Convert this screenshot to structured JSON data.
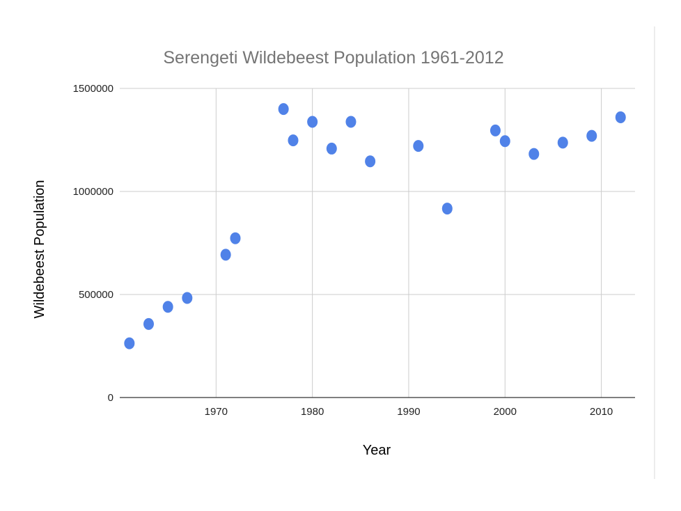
{
  "chart_data": {
    "type": "scatter",
    "title": "Serengeti Wildebeest Population 1961-2012",
    "xlabel": "Year",
    "ylabel": "Wildebeest Population",
    "xlim": [
      1960,
      2013.5
    ],
    "ylim": [
      0,
      1500000
    ],
    "x_ticks": [
      1970,
      1980,
      1990,
      2000,
      2010
    ],
    "y_ticks": [
      0,
      500000,
      1000000,
      1500000
    ],
    "y_tick_labels": [
      "0",
      "500000",
      "1000000",
      "1500000"
    ],
    "grid": true,
    "point_color": "#5082E8",
    "series": [
      {
        "name": "Wildebeest Population",
        "points": [
          {
            "x": 1961,
            "y": 263000
          },
          {
            "x": 1963,
            "y": 357000
          },
          {
            "x": 1965,
            "y": 440000
          },
          {
            "x": 1967,
            "y": 483000
          },
          {
            "x": 1971,
            "y": 693000
          },
          {
            "x": 1972,
            "y": 773000
          },
          {
            "x": 1977,
            "y": 1400000
          },
          {
            "x": 1978,
            "y": 1248000
          },
          {
            "x": 1980,
            "y": 1338000
          },
          {
            "x": 1982,
            "y": 1208000
          },
          {
            "x": 1984,
            "y": 1338000
          },
          {
            "x": 1986,
            "y": 1146000
          },
          {
            "x": 1991,
            "y": 1221000
          },
          {
            "x": 1994,
            "y": 917000
          },
          {
            "x": 1999,
            "y": 1296000
          },
          {
            "x": 2000,
            "y": 1244000
          },
          {
            "x": 2003,
            "y": 1182000
          },
          {
            "x": 2006,
            "y": 1237000
          },
          {
            "x": 2009,
            "y": 1270000
          },
          {
            "x": 2012,
            "y": 1360000
          }
        ]
      }
    ]
  }
}
